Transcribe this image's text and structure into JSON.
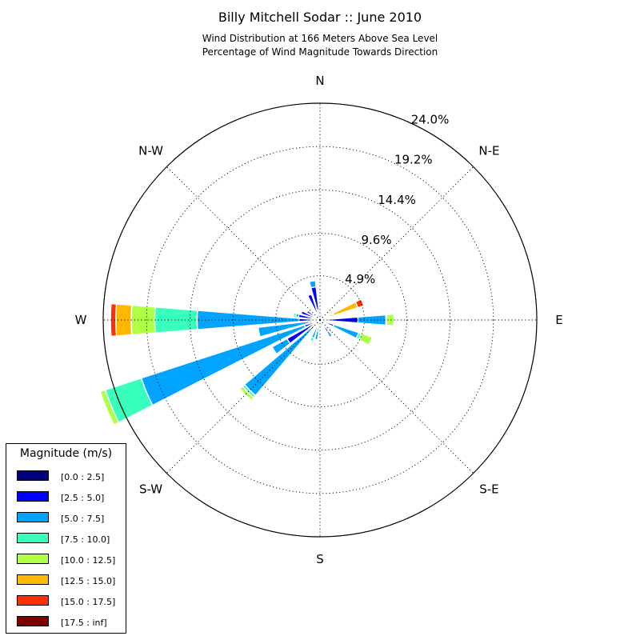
{
  "title": "Billy Mitchell Sodar :: June 2010",
  "subtitle_line1": "Wind Distribution at 166 Meters Above Sea Level",
  "subtitle_line2": "Percentage of Wind Magnitude Towards Direction",
  "chart_data": {
    "type": "windrose",
    "title": "Billy Mitchell Sodar :: June 2010",
    "subtitle": "Wind Distribution at 166 Meters Above Sea Level / Percentage of Wind Magnitude Towards Direction",
    "direction_labels": [
      {
        "angle": 0,
        "label": "N"
      },
      {
        "angle": 45,
        "label": "N-E"
      },
      {
        "angle": 90,
        "label": "E"
      },
      {
        "angle": 135,
        "label": "S-E"
      },
      {
        "angle": 180,
        "label": "S"
      },
      {
        "angle": 225,
        "label": "S-W"
      },
      {
        "angle": 270,
        "label": "W"
      },
      {
        "angle": 315,
        "label": "N-W"
      }
    ],
    "radial_ticks": [
      4.9,
      9.6,
      14.4,
      19.2,
      24.0
    ],
    "radial_tick_labels": [
      "4.9%",
      "9.6%",
      "14.4%",
      "19.2%",
      "24.0%"
    ],
    "rmax": 24.0,
    "legend_title": "Magnitude (m/s)",
    "legend_placement": "lower-left",
    "bins": [
      {
        "label": "[0.0 : 2.5]",
        "color": "#000080"
      },
      {
        "label": "[2.5 : 5.0]",
        "color": "#0000ff"
      },
      {
        "label": "[5.0 : 7.5]",
        "color": "#00a4ff"
      },
      {
        "label": "[7.5 : 10.0]",
        "color": "#39ffbe"
      },
      {
        "label": "[10.0 : 12.5]",
        "color": "#afff47"
      },
      {
        "label": "[12.5 : 15.0]",
        "color": "#ffb800"
      },
      {
        "label": "[15.0 : 17.5]",
        "color": "#ff3000"
      },
      {
        "label": "[17.5 : inf]",
        "color": "#800000"
      }
    ],
    "sectors": [
      {
        "direction": 0,
        "cumulative": [
          0.3,
          0.4
        ]
      },
      {
        "direction": 11.25,
        "cumulative": [
          0.3,
          0.6
        ]
      },
      {
        "direction": 22.5,
        "cumulative": [
          0.2,
          0.4
        ]
      },
      {
        "direction": 33.75,
        "cumulative": [
          0.2,
          0.5
        ]
      },
      {
        "direction": 45,
        "cumulative": [
          0.2,
          0.4
        ]
      },
      {
        "direction": 56.25,
        "cumulative": [
          0.2,
          0.5,
          0.9,
          1.2,
          1.5,
          1.7
        ]
      },
      {
        "direction": 67.5,
        "cumulative": [
          0.3,
          0.5,
          0.7,
          1.0,
          1.6,
          4.4,
          5.1
        ]
      },
      {
        "direction": 78.75,
        "cumulative": [
          0.3,
          0.6
        ]
      },
      {
        "direction": 90,
        "cumulative": [
          0.2,
          4.2,
          7.3,
          7.4,
          8.2
        ]
      },
      {
        "direction": 101.25,
        "cumulative": [
          0.2,
          0.6
        ]
      },
      {
        "direction": 112.5,
        "cumulative": [
          0.3,
          1.6,
          4.5,
          4.8,
          6.1
        ]
      },
      {
        "direction": 123.75,
        "cumulative": [
          0.3,
          0.6
        ]
      },
      {
        "direction": 135,
        "cumulative": [
          0.3,
          0.7,
          1.0,
          1.2,
          1.5,
          1.8
        ]
      },
      {
        "direction": 146.25,
        "cumulative": [
          0.3,
          1.5,
          2.2,
          2.3
        ]
      },
      {
        "direction": 157.5,
        "cumulative": [
          0.3,
          0.7
        ]
      },
      {
        "direction": 168.75,
        "cumulative": [
          0.2,
          0.5
        ]
      },
      {
        "direction": 180,
        "cumulative": [
          0.3,
          0.4
        ]
      },
      {
        "direction": 191.25,
        "cumulative": [
          0.3,
          1.2,
          2.2
        ]
      },
      {
        "direction": 202.5,
        "cumulative": [
          0.3,
          0.6,
          2.1,
          2.5
        ]
      },
      {
        "direction": 213.75,
        "cumulative": [
          0.2,
          0.7
        ]
      },
      {
        "direction": 225,
        "cumulative": [
          0.3,
          1.5,
          11.0,
          11.3,
          11.7
        ]
      },
      {
        "direction": 236.25,
        "cumulative": [
          0.2,
          4.2,
          6.1
        ]
      },
      {
        "direction": 247.5,
        "cumulative": [
          0.4,
          1.8,
          20.8,
          25.0,
          25.6
        ]
      },
      {
        "direction": 258.75,
        "cumulative": [
          0.3,
          1.2,
          6.9
        ]
      },
      {
        "direction": 270,
        "cumulative": [
          0.6,
          2.3,
          13.6,
          18.3,
          20.9,
          22.6,
          23.2
        ]
      },
      {
        "direction": 281.25,
        "cumulative": [
          0.7,
          2.4,
          2.7,
          3.0
        ]
      },
      {
        "direction": 292.5,
        "cumulative": [
          0.5,
          2.2
        ]
      },
      {
        "direction": 303.75,
        "cumulative": [
          0.2,
          1.7
        ]
      },
      {
        "direction": 315,
        "cumulative": [
          0.2,
          0.5
        ]
      },
      {
        "direction": 326.25,
        "cumulative": [
          0.2,
          0.5
        ]
      },
      {
        "direction": 337.5,
        "cumulative": [
          0.5,
          3.0
        ]
      },
      {
        "direction": 348.75,
        "cumulative": [
          1.1,
          3.7,
          4.4
        ]
      }
    ]
  }
}
